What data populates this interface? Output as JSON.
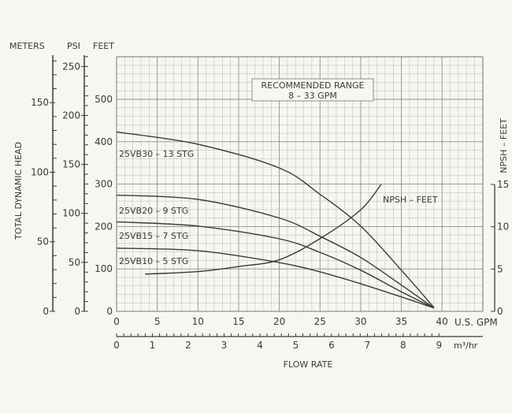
{
  "chart_data": {
    "type": "line",
    "xlabel": "FLOW RATE",
    "x_unit": "U.S. GPM",
    "x2_unit": "m³/hr",
    "ylabel": "TOTAL DYNAMIC HEAD",
    "y_axes": [
      {
        "label": "METERS",
        "ticks": [
          "0",
          "50",
          "100",
          "150"
        ]
      },
      {
        "label": "PSI",
        "ticks": [
          "0",
          "50",
          "100",
          "150",
          "200",
          "250"
        ]
      },
      {
        "label": "FEET",
        "ticks": [
          "0",
          "100",
          "200",
          "300",
          "400",
          "500"
        ]
      }
    ],
    "y2_label": "NPSH – FEET",
    "y2_ticks": [
      "0",
      "5",
      "10",
      "15"
    ],
    "x_ticks": [
      "0",
      "5",
      "10",
      "15",
      "20",
      "25",
      "30",
      "35",
      "40"
    ],
    "x2_ticks": [
      "0",
      "1",
      "2",
      "3",
      "4",
      "5",
      "6",
      "7",
      "8",
      "9"
    ],
    "xlim": [
      0,
      45
    ],
    "ylim": [
      0,
      600
    ],
    "y2lim": [
      0,
      15
    ],
    "grid": true,
    "annotation": {
      "line1": "RECOMMENDED RANGE",
      "line2": "8 – 33 GPM"
    },
    "series": [
      {
        "name": "25VB30 – 13 STG",
        "axis": "feet",
        "x": [
          0,
          10,
          20,
          25,
          30,
          35,
          39
        ],
        "y": [
          423,
          394,
          338,
          276,
          201,
          97,
          9
        ]
      },
      {
        "name": "25VB20 – 9 STG",
        "axis": "feet",
        "x": [
          0,
          10,
          20,
          25,
          30,
          35,
          39
        ],
        "y": [
          274,
          264,
          220,
          177,
          127,
          62,
          8
        ]
      },
      {
        "name": "25VB15 – 7 STG",
        "axis": "feet",
        "x": [
          0,
          10,
          20,
          25,
          30,
          35,
          39
        ],
        "y": [
          211,
          201,
          171,
          139,
          97,
          46,
          8
        ]
      },
      {
        "name": "25VB10 – 5 STG",
        "axis": "feet",
        "x": [
          0,
          10,
          20,
          25,
          30,
          35,
          39
        ],
        "y": [
          149,
          143,
          115,
          93,
          65,
          34,
          8
        ]
      },
      {
        "name": "NPSH – FEET",
        "axis": "npsh",
        "x": [
          3.5,
          10,
          15,
          20,
          25,
          30,
          32.5
        ],
        "y": [
          4.4,
          4.7,
          5.3,
          6.1,
          8.6,
          12.0,
          15.0
        ]
      }
    ],
    "colors": {
      "line": "#3a3a3a",
      "grid": "#b9b9b4",
      "grid_major": "#8e8e8a",
      "background": "#f7f6f2"
    }
  }
}
